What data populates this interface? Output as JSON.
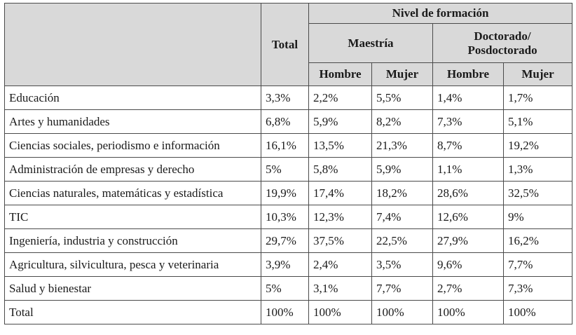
{
  "header": {
    "total": "Total",
    "group": "Nivel de formación",
    "maestria": "Maestría",
    "doctorado": "Doctorado/ Posdoctorado",
    "hombre": "Hombre",
    "mujer": "Mujer"
  },
  "rows": [
    {
      "label": "Educación",
      "total": "3,3%",
      "m_h": "2,2%",
      "m_m": "5,5%",
      "d_h": "1,4%",
      "d_m": "1,7%"
    },
    {
      "label": "Artes y humanidades",
      "total": "6,8%",
      "m_h": "5,9%",
      "m_m": "8,2%",
      "d_h": "7,3%",
      "d_m": "5,1%"
    },
    {
      "label": "Ciencias sociales, periodismo e información",
      "total": "16,1%",
      "m_h": "13,5%",
      "m_m": "21,3%",
      "d_h": "8,7%",
      "d_m": "19,2%"
    },
    {
      "label": "Administración de empresas y derecho",
      "total": "5%",
      "m_h": "5,8%",
      "m_m": "5,9%",
      "d_h": "1,1%",
      "d_m": "1,3%"
    },
    {
      "label": "Ciencias naturales, matemáticas y estadística",
      "total": "19,9%",
      "m_h": "17,4%",
      "m_m": "18,2%",
      "d_h": "28,6%",
      "d_m": "32,5%"
    },
    {
      "label": "TIC",
      "total": "10,3%",
      "m_h": "12,3%",
      "m_m": "7,4%",
      "d_h": "12,6%",
      "d_m": "9%"
    },
    {
      "label": "Ingeniería, industria y construcción",
      "total": "29,7%",
      "m_h": "37,5%",
      "m_m": "22,5%",
      "d_h": "27,9%",
      "d_m": "16,2%"
    },
    {
      "label": "Agricultura, silvicultura, pesca y veterinaria",
      "total": "3,9%",
      "m_h": "2,4%",
      "m_m": "3,5%",
      "d_h": "9,6%",
      "d_m": "7,7%"
    },
    {
      "label": "Salud y bienestar",
      "total": "5%",
      "m_h": "3,1%",
      "m_m": "7,7%",
      "d_h": "2,7%",
      "d_m": "7,3%"
    },
    {
      "label": "Total",
      "total": "100%",
      "m_h": "100%",
      "m_m": "100%",
      "d_h": "100%",
      "d_m": "100%"
    }
  ]
}
